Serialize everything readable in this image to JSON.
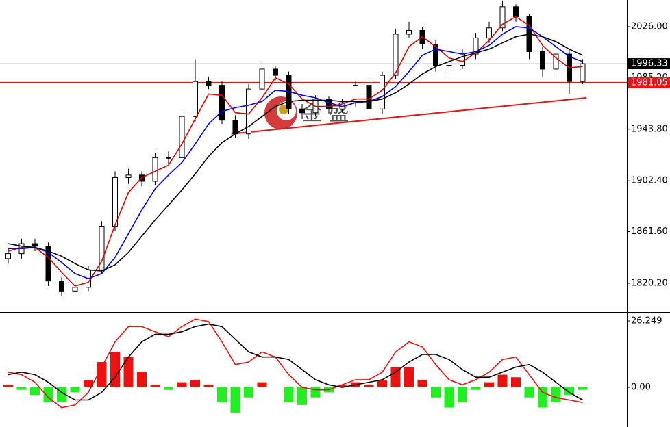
{
  "chart_data": [
    {
      "type": "candlestick",
      "open": [
        1840,
        1844,
        1852,
        1850,
        1822,
        1814,
        1817,
        1831,
        1866,
        1905,
        1907,
        1902,
        1921,
        1921,
        1954,
        1982,
        1979,
        1951,
        1940,
        1976,
        1992,
        1987,
        1960,
        1957,
        1968,
        1960,
        1965,
        1979,
        1960,
        1987,
        2020,
        2023,
        2012,
        1995,
        1995,
        2004,
        2017,
        2025,
        2042,
        2034,
        2006,
        1992,
        2004,
        1982
      ],
      "high": [
        1848,
        1856,
        1856,
        1853,
        1825,
        1820,
        1834,
        1870,
        1910,
        1912,
        1910,
        1925,
        1926,
        1958,
        2000,
        1986,
        1982,
        1955,
        1980,
        1998,
        1994,
        1990,
        1964,
        1971,
        1970,
        1968,
        1982,
        1982,
        1990,
        2024,
        2030,
        2026,
        2015,
        1999,
        2008,
        2021,
        2030,
        2047,
        2044,
        2036,
        2010,
        2008,
        2008,
        2000
      ],
      "low": [
        1836,
        1840,
        1846,
        1818,
        1810,
        1811,
        1814,
        1828,
        1862,
        1900,
        1898,
        1899,
        1916,
        1918,
        1950,
        1976,
        1948,
        1937,
        1936,
        1972,
        1983,
        1956,
        1952,
        1954,
        1956,
        1957,
        1962,
        1955,
        1956,
        1984,
        2017,
        2008,
        1990,
        1990,
        1992,
        2000,
        2013,
        2022,
        2030,
        2000,
        1986,
        1988,
        1972,
        1980
      ],
      "close": [
        1844,
        1852,
        1850,
        1822,
        1814,
        1817,
        1831,
        1866,
        1905,
        1907,
        1902,
        1921,
        1921,
        1954,
        1982,
        1979,
        1951,
        1940,
        1976,
        1992,
        1987,
        1960,
        1957,
        1968,
        1960,
        1965,
        1979,
        1960,
        1987,
        2020,
        2023,
        2012,
        1995,
        1995,
        2004,
        2017,
        2025,
        2042,
        2034,
        2006,
        1992,
        2004,
        1982,
        1996.33
      ],
      "up_color": "#ffffff",
      "down_color": "#000000",
      "series": [
        {
          "color": "#e00000",
          "values": [
            1846,
            1849,
            1849,
            1841,
            1829,
            1818,
            1821,
            1838,
            1867,
            1893,
            1905,
            1910,
            1915,
            1932,
            1952,
            1972,
            1971,
            1957,
            1956,
            1969,
            1985,
            1980,
            1968,
            1962,
            1962,
            1964,
            1968,
            1968,
            1975,
            1989,
            2010,
            2018,
            2010,
            2001,
            1998,
            2005,
            2015,
            2028,
            2034,
            2027,
            2011,
            2001,
            1993,
            1994
          ]
        },
        {
          "color": "#0000ff",
          "values": [
            1848,
            1848,
            1849,
            1845,
            1837,
            1828,
            1824,
            1828,
            1841,
            1860,
            1879,
            1896,
            1907,
            1917,
            1932,
            1948,
            1958,
            1961,
            1963,
            1966,
            1975,
            1974,
            1971,
            1969,
            1965,
            1962,
            1965,
            1966,
            1970,
            1978,
            1990,
            2003,
            2008,
            2006,
            2004,
            2006,
            2011,
            2020,
            2026,
            2025,
            2018,
            2010,
            2002,
            1998
          ]
        },
        {
          "color": "#000000",
          "values": [
            1852,
            1850,
            1849,
            1846,
            1842,
            1836,
            1831,
            1830,
            1835,
            1845,
            1858,
            1871,
            1883,
            1895,
            1908,
            1922,
            1933,
            1940,
            1946,
            1954,
            1962,
            1966,
            1967,
            1967,
            1967,
            1966,
            1966,
            1966,
            1968,
            1973,
            1980,
            1988,
            1994,
            1998,
            2002,
            2005,
            2008,
            2013,
            2018,
            2020,
            2018,
            2014,
            2008,
            2003
          ]
        }
      ],
      "ylim": [
        1798.8,
        2047.4
      ],
      "yticks": [
        {
          "value": 2026,
          "label": "2026.00"
        },
        {
          "value": 1985.2,
          "label": "1985.20"
        },
        {
          "value": 1943.8,
          "label": "1943.80"
        },
        {
          "value": 1902.4,
          "label": "1902.40"
        },
        {
          "value": 1861.6,
          "label": "1861.60"
        },
        {
          "value": 1820.2,
          "label": "1820.20"
        }
      ],
      "last_price": 1996.33,
      "level": 1981.05,
      "level_color": "#ee1111",
      "trendline": {
        "x": [
          16.7,
          43.3
        ],
        "y": [
          1940,
          1969
        ]
      },
      "watermark": "金 盛"
    },
    {
      "type": "macd",
      "histogram": [
        1,
        -1,
        -3,
        -6,
        -6,
        -2,
        3,
        10,
        14,
        12,
        6,
        1,
        -1,
        2,
        3,
        1,
        -6,
        -10,
        -4,
        2,
        0,
        -6,
        -7,
        -4,
        -2,
        1,
        2,
        1,
        3,
        8,
        8,
        3,
        -4,
        -8,
        -6,
        -1,
        2,
        5,
        4,
        -4,
        -8,
        -6,
        -3,
        -1
      ],
      "up_color": "#ee1111",
      "down_color": "#22ee22",
      "series": [
        {
          "color": "#ee1111",
          "values": [
            6,
            5,
            2,
            -4,
            -8,
            -7,
            -2,
            8,
            18,
            24,
            24,
            22,
            20,
            24,
            27,
            26,
            18,
            9,
            10,
            14,
            12,
            5,
            0,
            -1,
            -1,
            1,
            3,
            3,
            6,
            14,
            18,
            16,
            9,
            3,
            1,
            3,
            6,
            11,
            12,
            5,
            -2,
            -4,
            -5,
            -6
          ]
        },
        {
          "color": "#000000",
          "values": [
            5,
            6,
            5,
            2,
            -2,
            -5,
            -5,
            -2,
            4,
            12,
            18,
            21,
            21,
            22,
            24,
            25,
            24,
            19,
            14,
            12,
            12,
            11,
            7,
            3,
            1,
            0,
            1,
            2,
            3,
            6,
            10,
            13,
            13,
            11,
            7,
            4,
            4,
            6,
            8,
            9,
            6,
            2,
            -2,
            -5
          ]
        }
      ],
      "ylim": [
        -15.7,
        29.5
      ],
      "yticks": [
        26.249,
        {
          "value": 0,
          "label": "0.00"
        }
      ]
    }
  ]
}
